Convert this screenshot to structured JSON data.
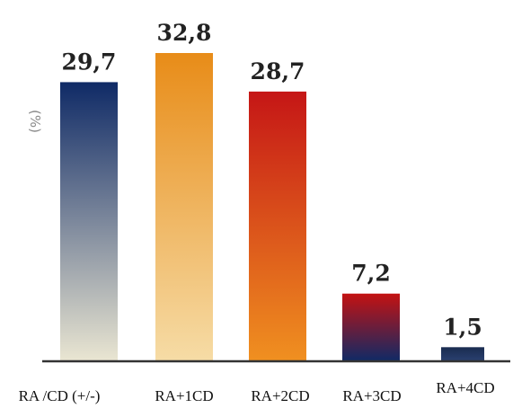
{
  "chart_data": {
    "type": "bar",
    "title": "",
    "xlabel": "",
    "ylabel": "(%)",
    "ylim": [
      0,
      32.8
    ],
    "grid": false,
    "legend": "none",
    "categories": [
      "RA /CD (+/-)",
      "RA+1CD",
      "RA+2CD",
      "RA+3CD",
      "RA+4CD"
    ],
    "values": [
      29.7,
      32.8,
      28.7,
      7.2,
      1.5
    ],
    "value_labels": [
      "29,7",
      "32,8",
      "28,7",
      "7,2",
      "1,5"
    ],
    "bar_gradients": [
      [
        "#0f2a66",
        "#eae6d2"
      ],
      [
        "#e88c18",
        "#f6dca6"
      ],
      [
        "#c51616",
        "#f09020"
      ],
      [
        "#c41212",
        "#0f2a66"
      ],
      [
        "#1a2c50",
        "#2a4070"
      ]
    ],
    "axis_color": "#333333"
  }
}
